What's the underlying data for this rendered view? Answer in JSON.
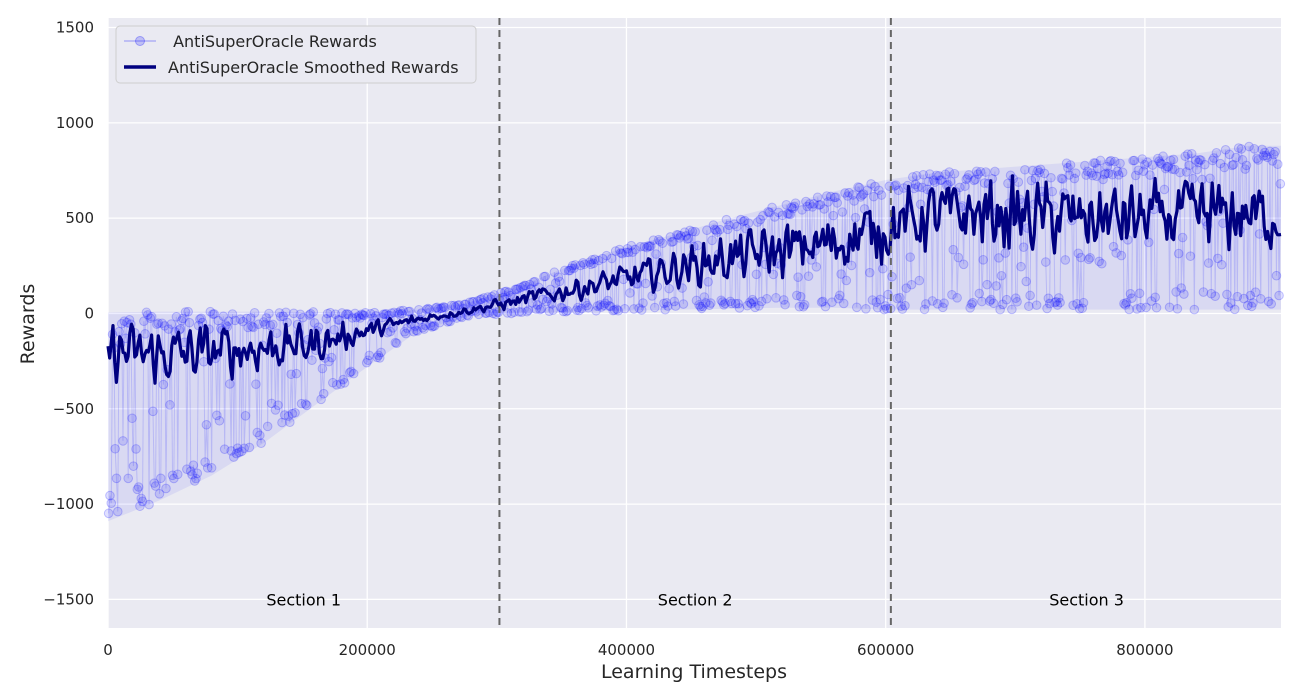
{
  "chart_data": {
    "type": "line",
    "title": "",
    "xlabel": "Learning Timesteps",
    "ylabel": "Rewards",
    "xlim": [
      0,
      905000
    ],
    "ylim": [
      -1650,
      1550
    ],
    "xticks": [
      0,
      200000,
      400000,
      600000,
      800000
    ],
    "xtick_labels": [
      "0",
      "200000",
      "400000",
      "600000",
      "800000"
    ],
    "yticks": [
      -1500,
      -1000,
      -500,
      0,
      500,
      1000,
      1500
    ],
    "ytick_labels": [
      "−1500",
      "−1000",
      "−500",
      "0",
      "500",
      "1000",
      "1500"
    ],
    "grid": true,
    "legend_position": "top-left",
    "vlines": [
      302000,
      604000
    ],
    "sections": [
      {
        "label": "Section 1",
        "x": 151000
      },
      {
        "label": "Section 2",
        "x": 453000
      },
      {
        "label": "Section 3",
        "x": 755000
      }
    ],
    "series": [
      {
        "name": " AntiSuperOracle Rewards",
        "style": "raw",
        "color": "#0000ff",
        "x": [
          0,
          40000,
          80000,
          120000,
          160000,
          200000,
          240000,
          280000,
          320000,
          360000,
          400000,
          440000,
          480000,
          520000,
          560000,
          600000,
          640000,
          680000,
          720000,
          760000,
          800000,
          840000,
          880000,
          905000
        ],
        "y_upper": [
          5,
          10,
          10,
          10,
          8,
          5,
          20,
          60,
          150,
          260,
          350,
          420,
          500,
          570,
          640,
          700,
          740,
          760,
          780,
          800,
          820,
          840,
          880,
          880
        ],
        "y_lower": [
          -1090,
          -980,
          -850,
          -680,
          -480,
          -280,
          -90,
          -10,
          0,
          10,
          15,
          20,
          25,
          30,
          30,
          20,
          20,
          20,
          20,
          20,
          20,
          20,
          20,
          20
        ]
      },
      {
        "name": "AntiSuperOracle Smoothed Rewards",
        "style": "smoothed",
        "color": "#000080",
        "x": [
          0,
          40000,
          80000,
          120000,
          160000,
          200000,
          240000,
          280000,
          320000,
          360000,
          400000,
          440000,
          480000,
          520000,
          560000,
          600000,
          640000,
          680000,
          720000,
          760000,
          800000,
          840000,
          880000,
          905000
        ],
        "y_mean": [
          -200,
          -220,
          -200,
          -180,
          -160,
          -90,
          -30,
          20,
          70,
          130,
          180,
          240,
          290,
          330,
          370,
          450,
          520,
          520,
          500,
          500,
          500,
          510,
          520,
          500
        ],
        "y_spread": [
          180,
          180,
          170,
          150,
          120,
          60,
          30,
          25,
          50,
          70,
          90,
          120,
          150,
          170,
          180,
          200,
          210,
          220,
          220,
          220,
          220,
          230,
          230,
          200
        ]
      }
    ]
  }
}
